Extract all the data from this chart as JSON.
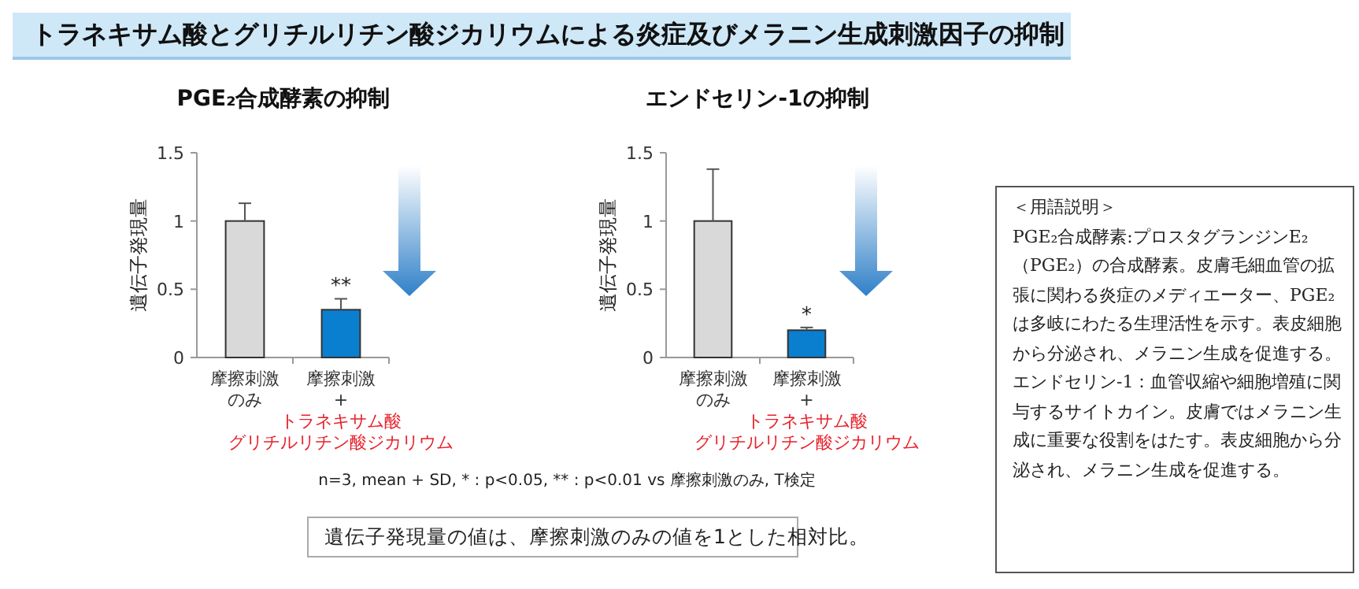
{
  "chart_data": [
    {
      "type": "other",
      "title": "トラネキサム酸とグリチルリチン酸ジカリウムによる炎症及びメラニン生成刺激因子の抑制"
    },
    {
      "type": "bar",
      "title": "PGE₂合成酵素の抑制",
      "ylabel": "遺伝子発現量",
      "categories": [
        "摩擦刺激のみ",
        "摩擦刺激+トラネキサム酸グリチルリチン酸ジカリウム"
      ],
      "values": [
        1.0,
        0.35
      ],
      "colors": [
        "#d9d9d9",
        "#0a7fd0"
      ],
      "errors": [
        [
          1.0,
          1.13
        ],
        [
          0.35,
          0.43
        ]
      ],
      "value_labels": [
        null,
        "**"
      ],
      "ylim": [
        0,
        1.5
      ],
      "yticks": [
        0,
        0.5,
        1,
        1.5
      ]
    },
    {
      "type": "bar",
      "title": "エンドセリン-1の抑制",
      "ylabel": "遺伝子発現量",
      "categories": [
        "摩擦刺激のみ",
        "摩擦刺激+トラネキサム酸グリチルリチン酸ジカリウム"
      ],
      "values": [
        1.0,
        0.2
      ],
      "colors": [
        "#d9d9d9",
        "#0a7fd0"
      ],
      "errors": [
        [
          1.0,
          1.38
        ],
        [
          0.2,
          0.22
        ]
      ],
      "value_labels": [
        null,
        "*"
      ],
      "ylim": [
        0,
        1.5
      ],
      "yticks": [
        0,
        0.5,
        1,
        1.5
      ]
    },
    {
      "type": "other",
      "annotations": [
        "n=3, mean + SD, * : p<0.05, ** : p<0.01 vs 摩擦刺激のみ, T検定",
        "遺伝子発現量の値は、摩擦刺激のみの値を1とした相対比。"
      ]
    },
    {
      "type": "other",
      "title": "＜用語説明＞",
      "annotations": [
        "PGE₂合成酵素:プロスタグランジンE₂（PGE₂）の合成酵素。皮膚毛細血管の拡張に関わる炎症のメディエーター、PGE₂は多岐にわたる生理活性を示す。表皮細胞から分泌され、メラニン生成を促進する。",
        "エンドセリン-1：血管収縮や細胞増殖に関与するサイトカイン。皮膚ではメラニン生成に重要な役割をはたす。表皮細胞から分泌され、メラニン生成を促進する。"
      ]
    }
  ]
}
